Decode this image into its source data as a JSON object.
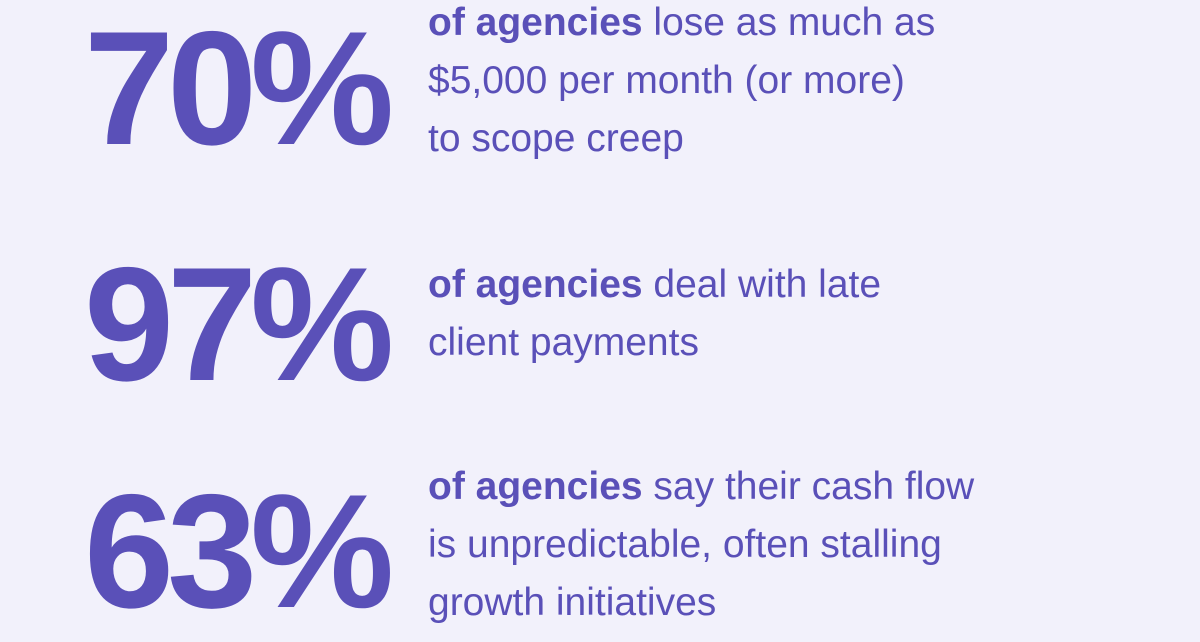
{
  "accent_color": "#5a50b8",
  "background_color": "#f2f1fb",
  "stats": [
    {
      "value": "70%",
      "bold": "of agencies",
      "rest": " lose as much as",
      "line2": "$5,000 per month (or more)",
      "line3": "to scope creep"
    },
    {
      "value": "97%",
      "bold": "of agencies",
      "rest": " deal with late",
      "line2": "client payments"
    },
    {
      "value": "63%",
      "bold": "of agencies",
      "rest": " say their cash flow",
      "line2": "is unpredictable, often stalling",
      "line3": "growth initiatives"
    }
  ]
}
